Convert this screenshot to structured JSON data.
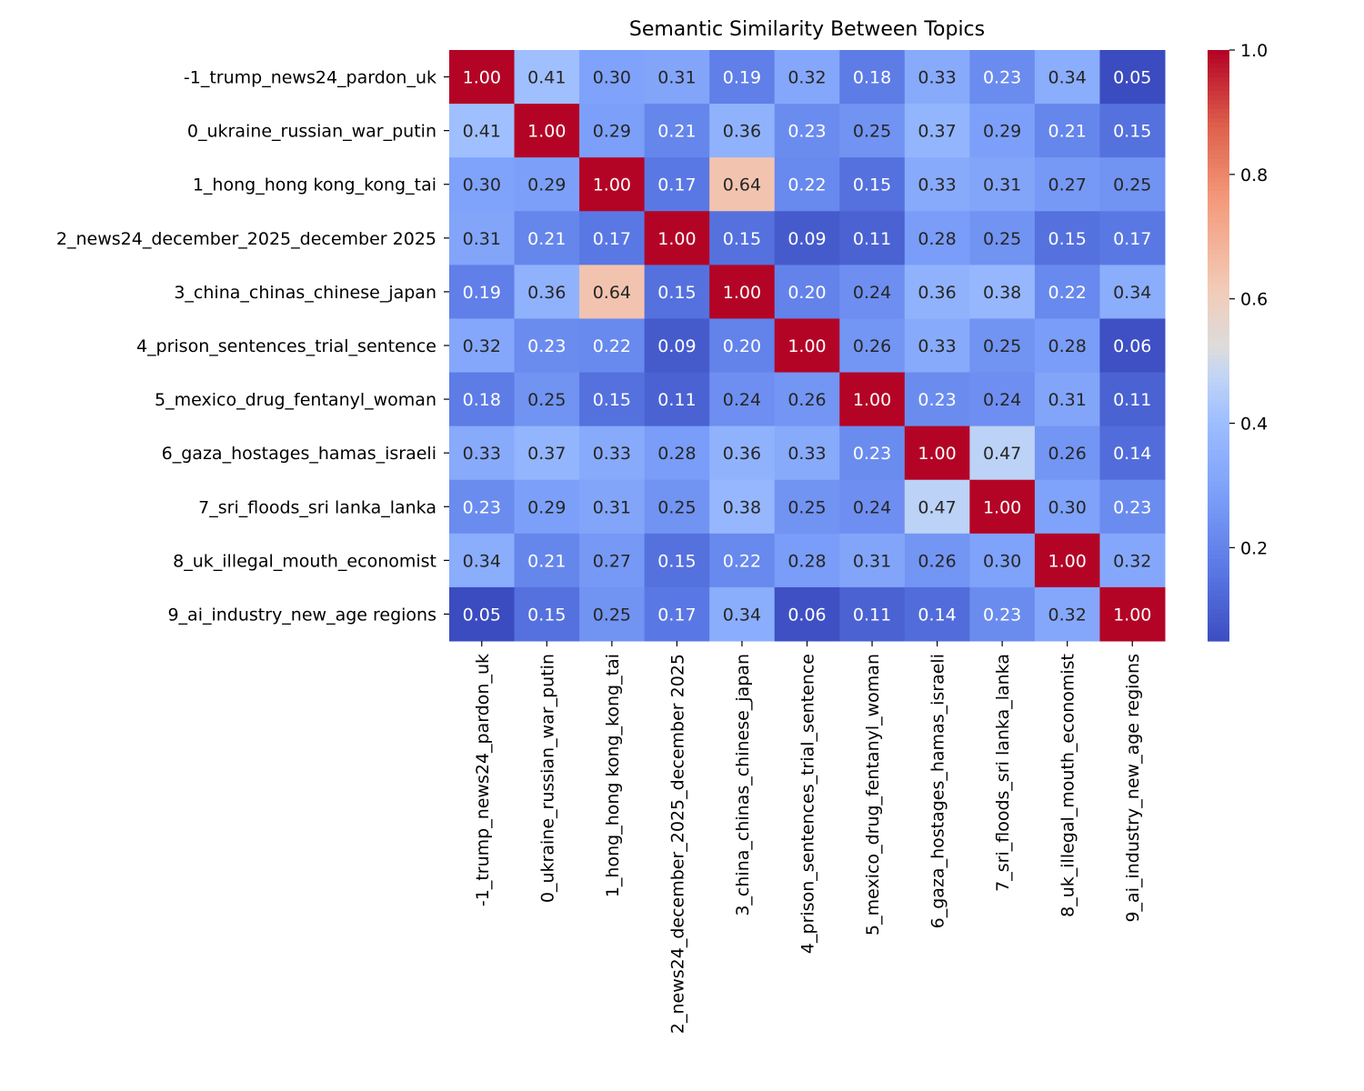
{
  "chart_data": {
    "type": "heatmap",
    "title": "Semantic Similarity Between Topics",
    "row_labels": [
      "-1_trump_news24_pardon_uk",
      "0_ukraine_russian_war_putin",
      "1_hong_hong kong_kong_tai",
      "2_news24_december_2025_december 2025",
      "3_china_chinas_chinese_japan",
      "4_prison_sentences_trial_sentence",
      "5_mexico_drug_fentanyl_woman",
      "6_gaza_hostages_hamas_israeli",
      "7_sri_floods_sri lanka_lanka",
      "8_uk_illegal_mouth_economist",
      "9_ai_industry_new_age regions"
    ],
    "col_labels": [
      "-1_trump_news24_pardon_uk",
      "0_ukraine_russian_war_putin",
      "1_hong_hong kong_kong_tai",
      "2_news24_december_2025_december 2025",
      "3_china_chinas_chinese_japan",
      "4_prison_sentences_trial_sentence",
      "5_mexico_drug_fentanyl_woman",
      "6_gaza_hostages_hamas_israeli",
      "7_sri_floods_sri lanka_lanka",
      "8_uk_illegal_mouth_economist",
      "9_ai_industry_new_age regions"
    ],
    "values": [
      [
        1.0,
        0.41,
        0.3,
        0.31,
        0.19,
        0.32,
        0.18,
        0.33,
        0.23,
        0.34,
        0.05
      ],
      [
        0.41,
        1.0,
        0.29,
        0.21,
        0.36,
        0.23,
        0.25,
        0.37,
        0.29,
        0.21,
        0.15
      ],
      [
        0.3,
        0.29,
        1.0,
        0.17,
        0.64,
        0.22,
        0.15,
        0.33,
        0.31,
        0.27,
        0.25
      ],
      [
        0.31,
        0.21,
        0.17,
        1.0,
        0.15,
        0.09,
        0.11,
        0.28,
        0.25,
        0.15,
        0.17
      ],
      [
        0.19,
        0.36,
        0.64,
        0.15,
        1.0,
        0.2,
        0.24,
        0.36,
        0.38,
        0.22,
        0.34
      ],
      [
        0.32,
        0.23,
        0.22,
        0.09,
        0.2,
        1.0,
        0.26,
        0.33,
        0.25,
        0.28,
        0.06
      ],
      [
        0.18,
        0.25,
        0.15,
        0.11,
        0.24,
        0.26,
        1.0,
        0.23,
        0.24,
        0.31,
        0.11
      ],
      [
        0.33,
        0.37,
        0.33,
        0.28,
        0.36,
        0.33,
        0.23,
        1.0,
        0.47,
        0.26,
        0.14
      ],
      [
        0.23,
        0.29,
        0.31,
        0.25,
        0.38,
        0.25,
        0.24,
        0.47,
        1.0,
        0.3,
        0.23
      ],
      [
        0.34,
        0.21,
        0.27,
        0.15,
        0.22,
        0.28,
        0.31,
        0.26,
        0.3,
        1.0,
        0.32
      ],
      [
        0.05,
        0.15,
        0.25,
        0.17,
        0.34,
        0.06,
        0.11,
        0.14,
        0.23,
        0.32,
        1.0
      ]
    ],
    "colormap": "coolwarm",
    "vmin": 0.05,
    "vmax": 1.0,
    "annotation_format": "0.00",
    "colorbar": {
      "ticks": [
        0.2,
        0.4,
        0.6,
        0.8,
        1.0
      ],
      "tick_labels": [
        "0.2",
        "0.4",
        "0.6",
        "0.8",
        "1.0"
      ],
      "placement": "right"
    }
  }
}
